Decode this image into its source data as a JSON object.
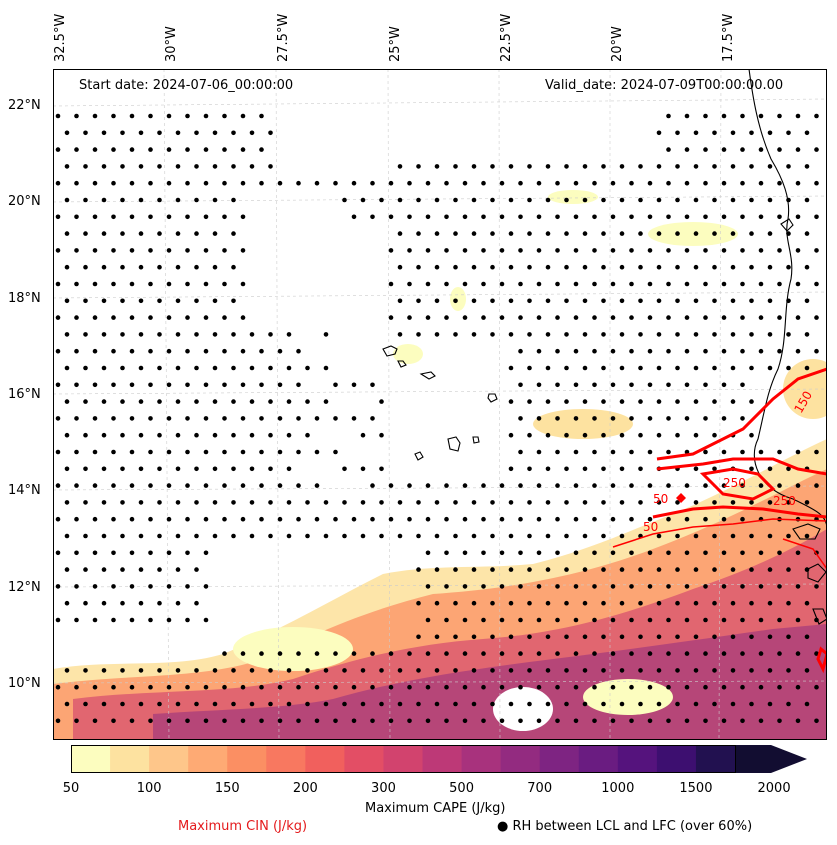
{
  "map": {
    "start_date": "Start date: 2024-07-06_00:00:00",
    "valid_date": "Valid_date: 2024-07-09T00:00:00.00",
    "lon_labels": [
      "32.5°W",
      "30°W",
      "27.5°W",
      "25°W",
      "22.5°W",
      "20°W",
      "17.5°W"
    ],
    "lat_labels": [
      "22°N",
      "20°N",
      "18°N",
      "16°N",
      "14°N",
      "12°N",
      "10°N"
    ],
    "cin_contour_labels": [
      "150",
      "50",
      "250",
      "250",
      "50"
    ]
  },
  "colorbar": {
    "title": "Maximum CAPE (J/kg)",
    "ticks": [
      "50",
      "100",
      "150",
      "200",
      "300",
      "500",
      "700",
      "1000",
      "1500",
      "2000"
    ],
    "colors": [
      "#fcfdbf",
      "#fde2a0",
      "#fec68a",
      "#feaa74",
      "#fb8f63",
      "#f87860",
      "#f1605d",
      "#e34e65",
      "#d2436e",
      "#bd3977",
      "#a8327d",
      "#932b80",
      "#7e2482",
      "#6a1c81",
      "#55137d",
      "#3d0f70",
      "#221150",
      "#120d31"
    ]
  },
  "legend": {
    "cin_label": "Maximum CIN (J/kg)",
    "rh_label": "● RH between LCL and LFC (over 60%)"
  },
  "colors": {
    "cin_contour": "#ff0000",
    "coastline": "#000000",
    "grid": "#cccccc"
  }
}
